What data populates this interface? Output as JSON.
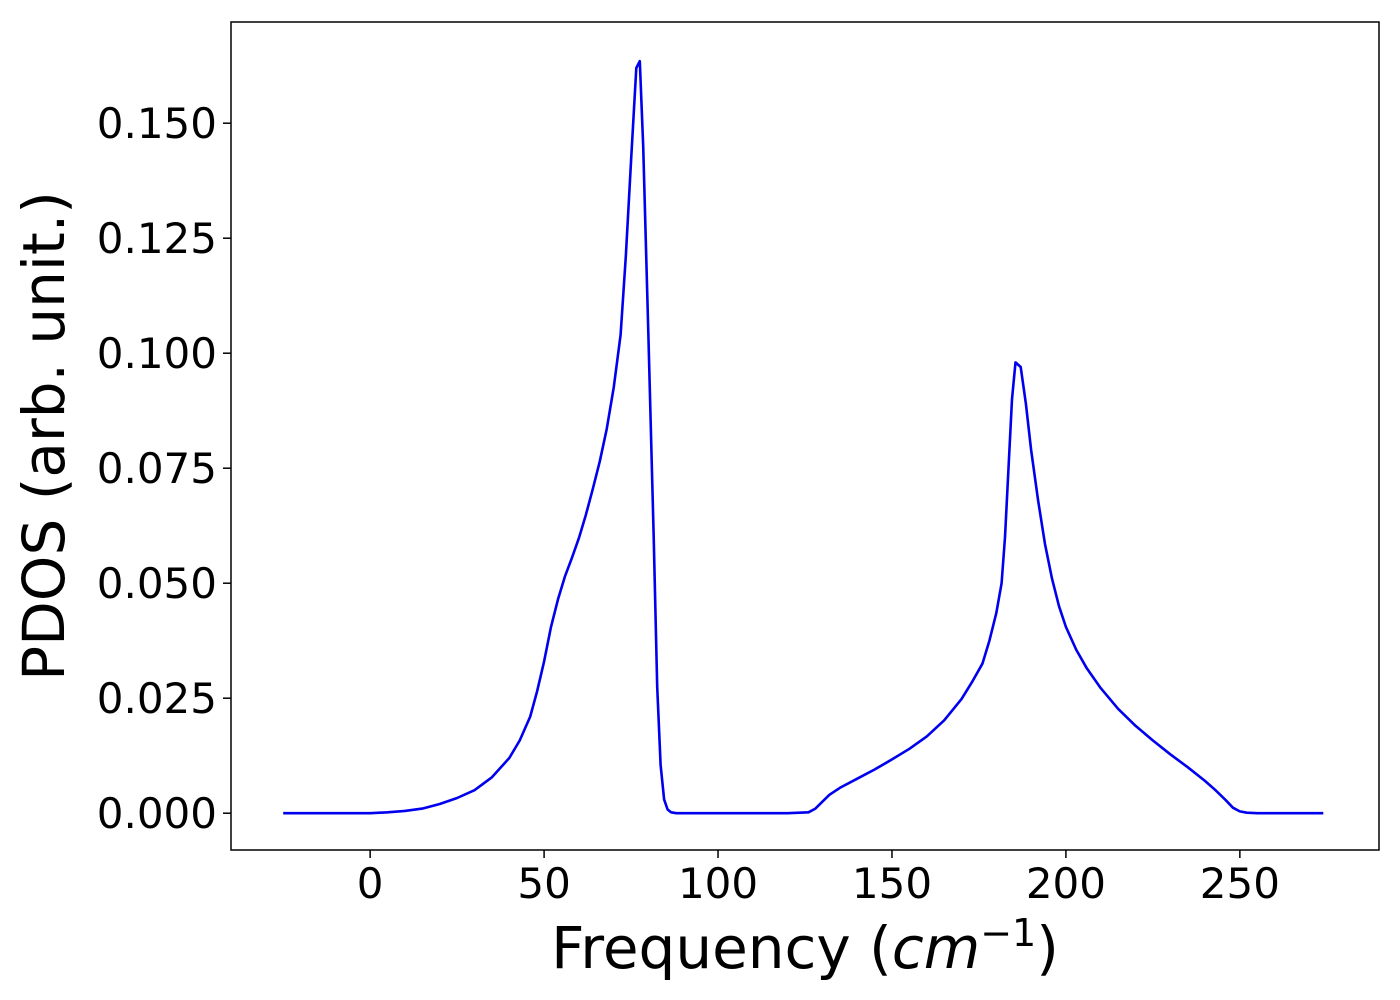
{
  "chart_data": {
    "type": "line",
    "xlabel_prefix": "Frequency (",
    "xlabel_unit": "cm",
    "xlabel_exp": "−1",
    "xlabel_suffix": ")",
    "ylabel": "PDOS (arb. unit.)",
    "xlim": [
      -40,
      290
    ],
    "ylim": [
      -0.008,
      0.172
    ],
    "xticks": [
      0,
      50,
      100,
      150,
      200,
      250
    ],
    "xtick_labels": [
      "0",
      "50",
      "100",
      "150",
      "200",
      "250"
    ],
    "yticks": [
      0,
      0.025,
      0.05,
      0.075,
      0.1,
      0.125,
      0.15
    ],
    "ytick_labels": [
      "0.000",
      "0.025",
      "0.050",
      "0.075",
      "0.100",
      "0.125",
      "0.150"
    ],
    "grid": false,
    "series": [
      {
        "color": "#0000ee",
        "x": [
          -25,
          0,
          5,
          10,
          15,
          20,
          25,
          30,
          35,
          40,
          43,
          46,
          48,
          50,
          52,
          54,
          56,
          58,
          60,
          62,
          64,
          66,
          68,
          70,
          72,
          73.5,
          75,
          76.5,
          77.5,
          78.5,
          80,
          81.5,
          82.5,
          83.5,
          84.5,
          85.5,
          86.5,
          88,
          90,
          95,
          100,
          110,
          120,
          126,
          128,
          130,
          132,
          135,
          140,
          145,
          150,
          155,
          160,
          165,
          170,
          173,
          176,
          178,
          180,
          181.5,
          182.5,
          183.5,
          184.5,
          185.5,
          187,
          188.5,
          190,
          192,
          194,
          196,
          198,
          200,
          203,
          206,
          210,
          215,
          220,
          225,
          230,
          235,
          240,
          243,
          246,
          248,
          250,
          252,
          255,
          260,
          270,
          274
        ],
        "y": [
          0,
          0,
          0.0002,
          0.0005,
          0.001,
          0.002,
          0.0033,
          0.005,
          0.0078,
          0.012,
          0.0158,
          0.021,
          0.0265,
          0.033,
          0.0405,
          0.0465,
          0.0515,
          0.0555,
          0.0598,
          0.0648,
          0.0705,
          0.0765,
          0.0835,
          0.0925,
          0.104,
          0.121,
          0.142,
          0.162,
          0.1635,
          0.145,
          0.103,
          0.06,
          0.0275,
          0.0105,
          0.003,
          0.0008,
          0.0002,
          0,
          0,
          0,
          0,
          0,
          0,
          0.0002,
          0.001,
          0.0025,
          0.004,
          0.0055,
          0.0075,
          0.0095,
          0.0117,
          0.014,
          0.0167,
          0.0202,
          0.0248,
          0.0285,
          0.0325,
          0.0375,
          0.0435,
          0.05,
          0.06,
          0.075,
          0.09,
          0.098,
          0.097,
          0.089,
          0.079,
          0.068,
          0.0585,
          0.051,
          0.045,
          0.0405,
          0.0355,
          0.0315,
          0.0272,
          0.0227,
          0.019,
          0.0158,
          0.0128,
          0.01,
          0.007,
          0.005,
          0.0028,
          0.0012,
          0.0004,
          0.0001,
          0,
          0,
          0,
          0
        ]
      }
    ]
  }
}
